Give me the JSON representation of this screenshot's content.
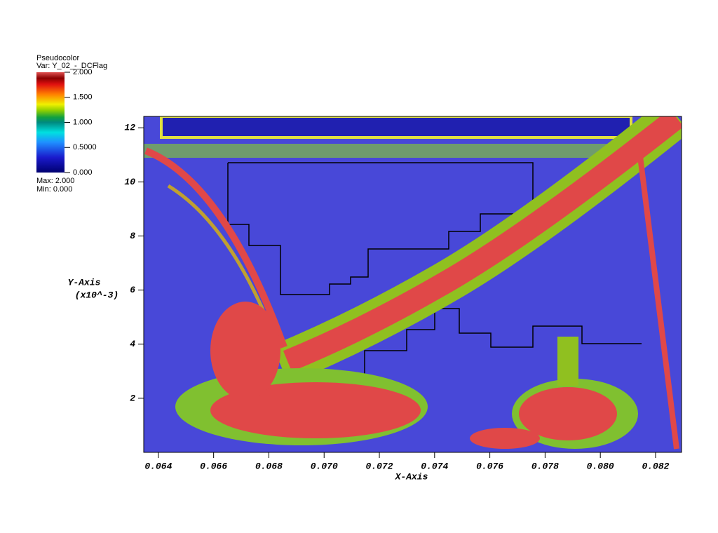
{
  "chart_data": {
    "type": "pseudocolor",
    "legend": {
      "title": "Pseudocolor",
      "var": "Var: Y_02_-_DCFlag",
      "range": [
        0,
        2
      ],
      "ticks": [
        {
          "value": 2,
          "label": "2.000"
        },
        {
          "value": 1.5,
          "label": "1.500"
        },
        {
          "value": 1,
          "label": "1.000"
        },
        {
          "value": 0.5,
          "label": "0.5000"
        },
        {
          "value": 0,
          "label": "0.000"
        }
      ],
      "max_label": "Max:  2.000",
      "min_label": "Min:  0.000"
    },
    "x_label": "X-Axis",
    "y_label": "Y-Axis",
    "y_label_2": "(x10^-3)",
    "xlim": [
      0.06347,
      0.08294
    ],
    "xticks": [
      {
        "value": 0.064,
        "label": "0.064"
      },
      {
        "value": 0.066,
        "label": "0.066"
      },
      {
        "value": 0.068,
        "label": "0.068"
      },
      {
        "value": 0.07,
        "label": "0.070"
      },
      {
        "value": 0.072,
        "label": "0.072"
      },
      {
        "value": 0.074,
        "label": "0.074"
      },
      {
        "value": 0.076,
        "label": "0.076"
      },
      {
        "value": 0.078,
        "label": "0.078"
      },
      {
        "value": 0.08,
        "label": "0.080"
      },
      {
        "value": 0.082,
        "label": "0.082"
      }
    ],
    "ylim": [
      0,
      12.42
    ],
    "yticks": [
      2,
      4,
      6,
      8,
      10,
      12
    ]
  }
}
